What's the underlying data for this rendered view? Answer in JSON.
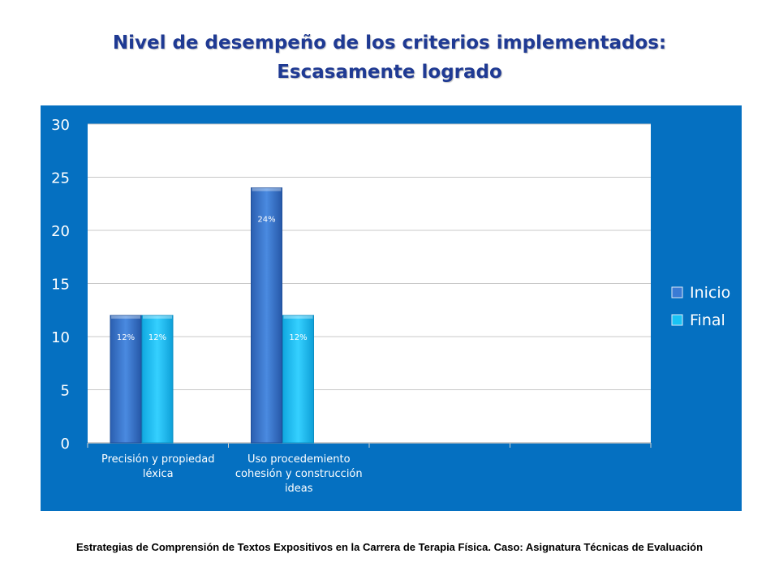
{
  "title_line1": "Nivel de desempeño de los criterios implementados:",
  "title_line2": "Escasamente logrado",
  "footer": "Estrategias de Comprensión de Textos Expositivos en la Carrera de Terapia Física. Caso: Asignatura Técnicas de Evaluación",
  "chart_data": {
    "type": "bar",
    "categories": [
      "Precisión y propiedad léxica",
      "Uso procedemiento cohesión y construcción ideas",
      "",
      ""
    ],
    "category_lines": [
      [
        "Precisión y propiedad",
        "léxica"
      ],
      [
        "Uso procedemiento",
        "cohesión y construcción",
        "ideas"
      ],
      [],
      []
    ],
    "series": [
      {
        "name": "Inicio",
        "values": [
          12,
          24,
          null,
          null
        ],
        "labels": [
          "12%",
          "24%",
          "",
          ""
        ],
        "color": "#3a7bd5"
      },
      {
        "name": "Final",
        "values": [
          12,
          12,
          null,
          null
        ],
        "labels": [
          "12%",
          "12%",
          "",
          ""
        ],
        "color": "#19c3f5"
      }
    ],
    "ylim": [
      0,
      30
    ],
    "yticks": [
      "0",
      "5",
      "10",
      "15",
      "20",
      "25",
      "30"
    ],
    "grid": true,
    "legend": "right"
  }
}
